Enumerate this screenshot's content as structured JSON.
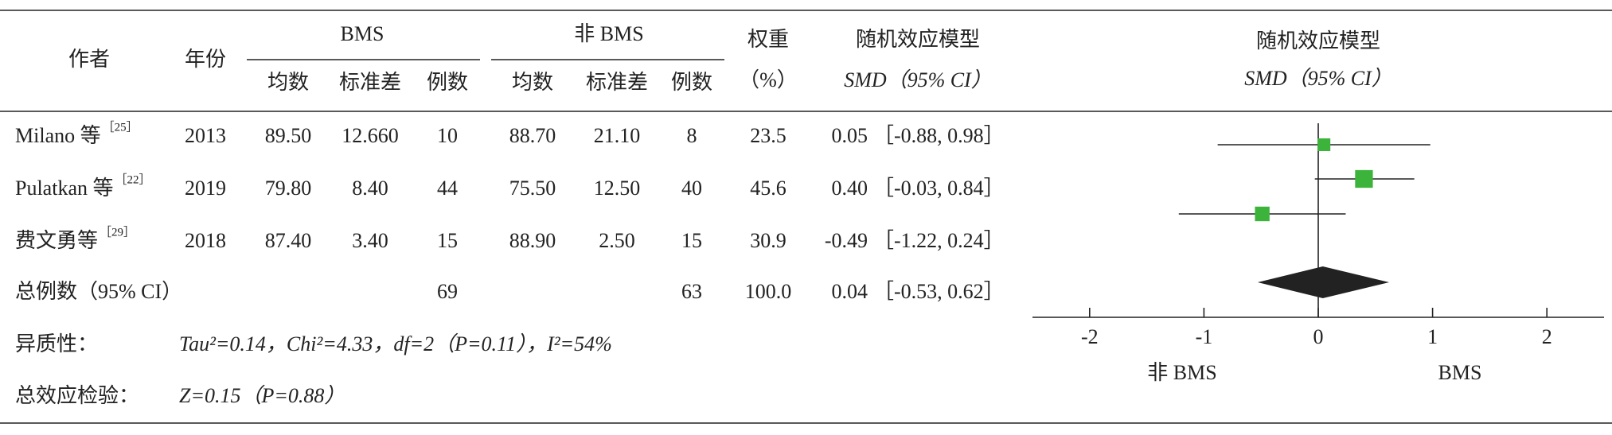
{
  "table": {
    "columns": {
      "author": "作者",
      "year": "年份",
      "group1": "BMS",
      "group2": "非 BMS",
      "mean": "均数",
      "sd": "标准差",
      "n": "例数",
      "weight": "权重",
      "weight_unit": "（%）"
    },
    "rows": [
      {
        "author": "Milano 等",
        "ref": "［25］",
        "year": "2013",
        "mean1": "89.50",
        "sd1": "12.660",
        "n1": "10",
        "mean2": "88.70",
        "sd2": "21.10",
        "n2": "8",
        "weight": "23.5",
        "smd": "0.05",
        "ci": "［-0.88, 0.98］"
      },
      {
        "author": "Pulatkan 等",
        "ref": "［22］",
        "year": "2019",
        "mean1": "79.80",
        "sd1": "8.40",
        "n1": "44",
        "mean2": "75.50",
        "sd2": "12.50",
        "n2": "40",
        "weight": "45.6",
        "smd": "0.40",
        "ci": "［-0.03, 0.84］"
      },
      {
        "author": "费文勇等",
        "ref": "［29］",
        "year": "2018",
        "mean1": "87.40",
        "sd1": "3.40",
        "n1": "15",
        "mean2": "88.90",
        "sd2": "2.50",
        "n2": "15",
        "weight": "30.9",
        "smd": "-0.49",
        "ci": "［-1.22, 0.24］"
      }
    ],
    "total": {
      "label": "总例数（95% CI）",
      "n1": "69",
      "n2": "63",
      "weight": "100.0",
      "smd": "0.04",
      "ci": "［-0.53, 0.62］"
    },
    "heterogeneity": {
      "label": "异质性：",
      "text": "Tau²=0.14，Chi²=4.33，df=2（P=0.11），I²=54%"
    },
    "overall": {
      "label": "总效应检验：",
      "text": "Z=0.15（P=0.88）"
    }
  },
  "chart_data": {
    "type": "forest",
    "title": "随机效应模型",
    "subtitle": "SMD（95% CI）",
    "xlim": [
      -2.5,
      2.5
    ],
    "xticks": [
      -2,
      -1,
      0,
      1,
      2
    ],
    "color": "#3cb43c",
    "series": {
      "smd": [
        0.05,
        0.4,
        -0.49
      ],
      "lower": [
        -0.88,
        -0.03,
        -1.22
      ],
      "upper": [
        0.98,
        0.84,
        0.24
      ],
      "weight": [
        23.5,
        45.6,
        30.9
      ]
    },
    "total": {
      "smd": 0.04,
      "lower": -0.53,
      "upper": 0.62,
      "color": "#222222"
    }
  }
}
